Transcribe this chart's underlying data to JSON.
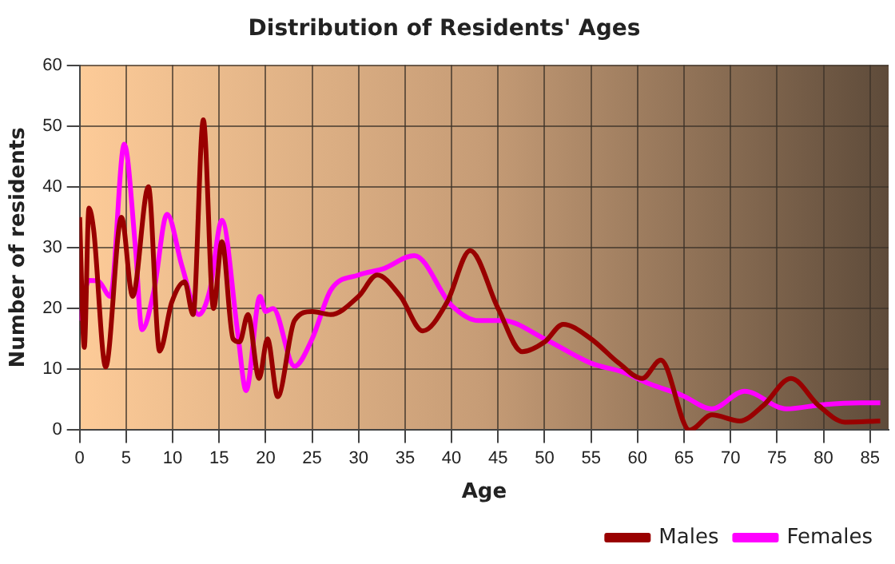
{
  "chart_data": {
    "type": "line",
    "title": "Distribution of Residents' Ages",
    "xlabel": "Age",
    "ylabel": "Number of residents",
    "xlim": [
      0,
      87
    ],
    "xticks": [
      0,
      5,
      10,
      15,
      20,
      25,
      30,
      35,
      40,
      45,
      50,
      55,
      60,
      65,
      70,
      75,
      80,
      85
    ],
    "ylim": [
      0,
      60
    ],
    "yticks": [
      0,
      10,
      20,
      30,
      40,
      50,
      60
    ],
    "grid": true,
    "legend": "bottom right",
    "marker": "none",
    "line_style": "solid",
    "series": [
      {
        "name": "Males",
        "color": "#990000",
        "x": [
          0,
          0.5,
          1,
          1.5,
          2.8,
          4.5,
          5.7,
          7.4,
          8.6,
          9.9,
          11.3,
          12.2,
          13.3,
          14.4,
          15.3,
          16.5,
          17.2,
          18.1,
          19.3,
          20.2,
          21.3,
          23.1,
          25,
          27,
          30,
          32,
          34.5,
          36.9,
          39.5,
          42,
          45,
          47.6,
          50,
          52,
          55,
          58,
          60.5,
          62.5,
          65.6,
          68,
          71,
          73.5,
          76.5,
          79.5,
          82.3,
          86.1
        ],
        "values": [
          35,
          13.6,
          36.5,
          33,
          10.4,
          35,
          22,
          40,
          13,
          21,
          24.4,
          19,
          51,
          20,
          31,
          15,
          14.5,
          19,
          8.5,
          15,
          5.5,
          18,
          19.5,
          19,
          22,
          25.5,
          22,
          16.3,
          21,
          29.5,
          20,
          12.9,
          14.5,
          17.4,
          15,
          11,
          8.5,
          11.5,
          0,
          2.5,
          1.5,
          4,
          8.5,
          4,
          1.3,
          1.5
        ]
      },
      {
        "name": "Females",
        "color": "#ff00ff",
        "x": [
          0,
          1,
          2,
          3.3,
          4.8,
          6,
          6.7,
          8,
          9.4,
          11,
          12.8,
          14,
          15.3,
          17,
          17.9,
          19.4,
          20,
          20.8,
          23.1,
          25,
          27,
          30,
          32.6,
          36,
          40,
          42.9,
          45.5,
          50,
          55,
          58.5,
          61.3,
          64.8,
          68,
          71.5,
          76,
          80,
          84,
          86.1
        ],
        "values": [
          18,
          24.6,
          24.5,
          22,
          47,
          30,
          16.5,
          23,
          35.5,
          27,
          19,
          23,
          34.5,
          16,
          6.5,
          22,
          19.5,
          20,
          10.5,
          15,
          23,
          25.5,
          26.5,
          28.7,
          20.5,
          18,
          18,
          15,
          11,
          9.5,
          7.6,
          5.7,
          3.5,
          6.4,
          3.5,
          4.2,
          4.5,
          4.5
        ]
      }
    ]
  }
}
